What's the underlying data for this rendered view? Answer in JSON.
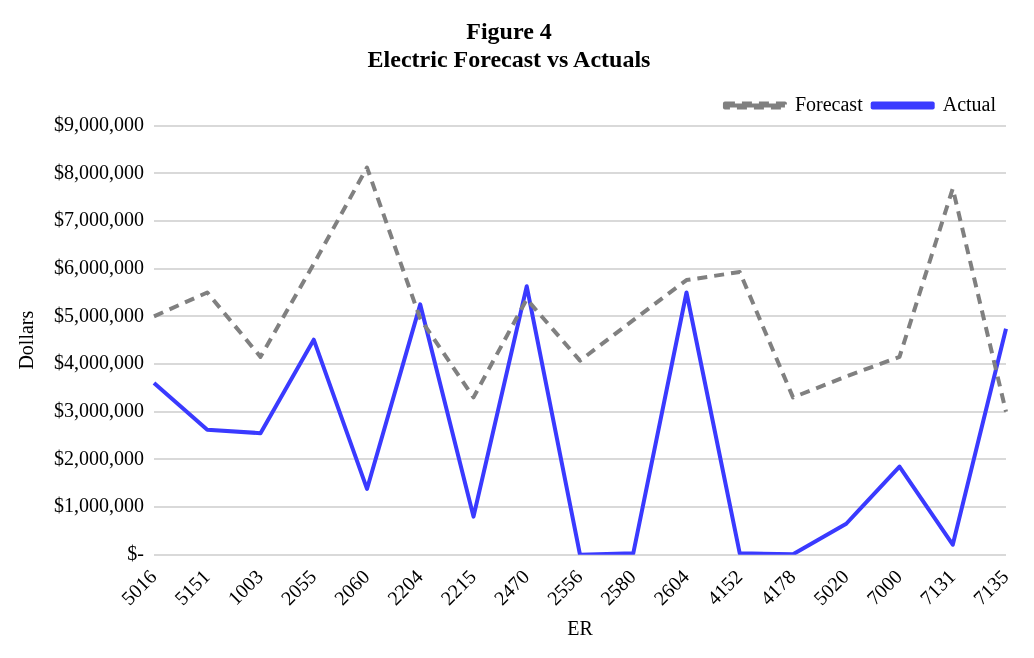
{
  "chart_data": {
    "type": "line",
    "title": [
      "Figure 4",
      "Electric Forecast vs Actuals"
    ],
    "xlabel": "ER",
    "ylabel": "Dollars",
    "categories": [
      "5016",
      "5151",
      "1003",
      "2055",
      "2060",
      "2204",
      "2215",
      "2470",
      "2556",
      "2580",
      "2604",
      "4152",
      "4178",
      "5020",
      "7000",
      "7131",
      "7135"
    ],
    "series": [
      {
        "name": "Forecast",
        "color": "#808080",
        "line_style": "dashed",
        "values": [
          5000000,
          5500000,
          4150000,
          6100000,
          8120000,
          4950000,
          3300000,
          5360000,
          4070000,
          4920000,
          5760000,
          5930000,
          3300000,
          3740000,
          4150000,
          7680000,
          3000000
        ]
      },
      {
        "name": "Actual",
        "color": "#3a3aff",
        "line_style": "solid",
        "values": [
          3600000,
          2620000,
          2550000,
          4510000,
          1380000,
          5250000,
          800000,
          5630000,
          0,
          30000,
          5500000,
          30000,
          10000,
          650000,
          1850000,
          210000,
          4740000
        ]
      }
    ],
    "ylim": [
      0,
      9000000
    ],
    "yticks": [
      {
        "value": 0,
        "label": "$-"
      },
      {
        "value": 1000000,
        "label": "$1,000,000"
      },
      {
        "value": 2000000,
        "label": "$2,000,000"
      },
      {
        "value": 3000000,
        "label": "$3,000,000"
      },
      {
        "value": 4000000,
        "label": "$4,000,000"
      },
      {
        "value": 5000000,
        "label": "$5,000,000"
      },
      {
        "value": 6000000,
        "label": "$6,000,000"
      },
      {
        "value": 7000000,
        "label": "$7,000,000"
      },
      {
        "value": 8000000,
        "label": "$8,000,000"
      },
      {
        "value": 9000000,
        "label": "$9,000,000"
      }
    ],
    "grid": "y",
    "legend": "top right",
    "marker": "none"
  }
}
